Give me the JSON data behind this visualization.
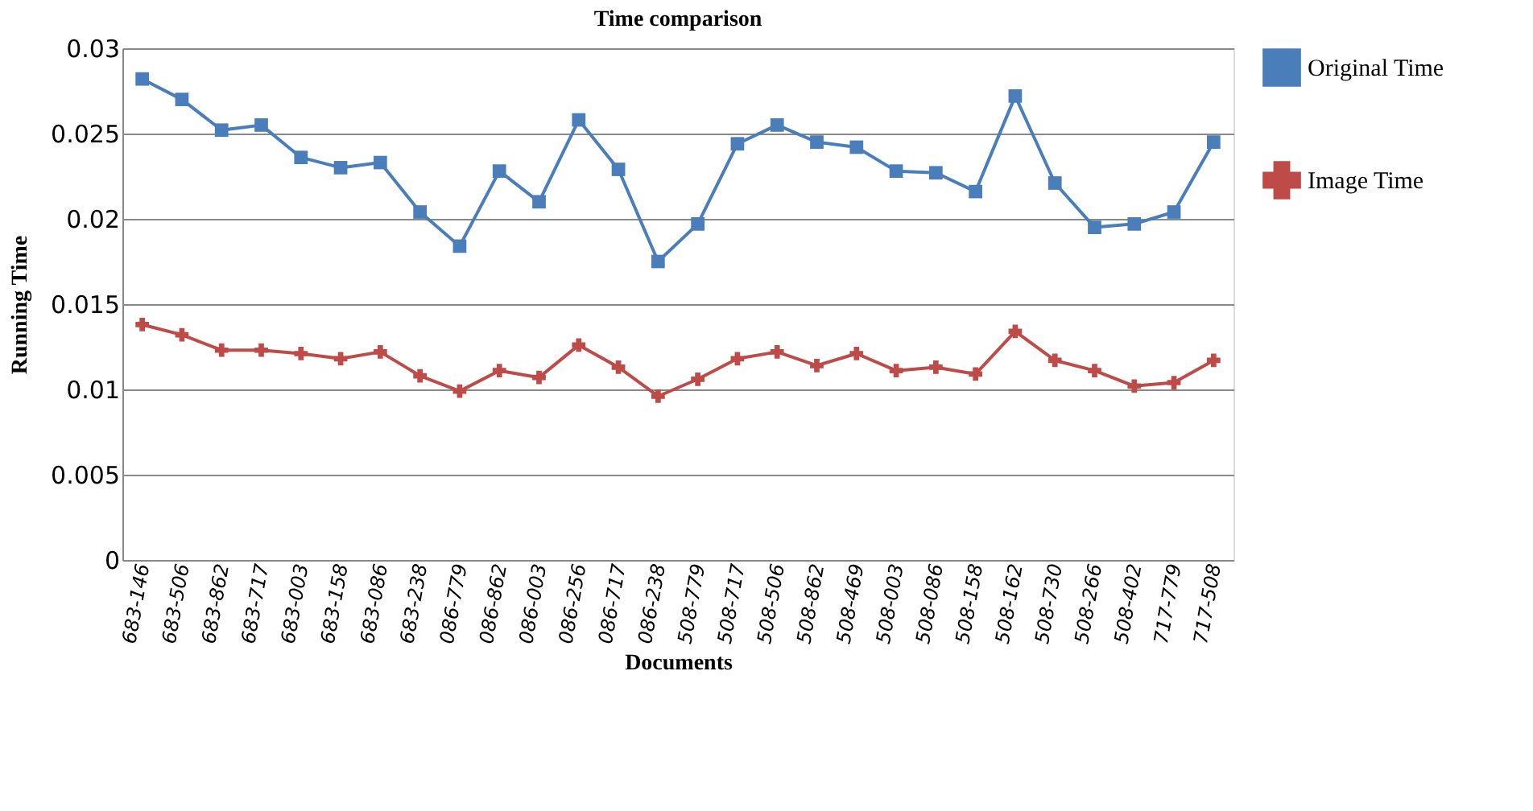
{
  "chart_data": {
    "type": "line",
    "title": "Time comparison",
    "xlabel": "Documents",
    "ylabel": "Running Time",
    "categories": [
      "683-146",
      "683-506",
      "683-862",
      "683-717",
      "683-003",
      "683-158",
      "683-086",
      "683-238",
      "086-779",
      "086-862",
      "086-003",
      "086-256",
      "086-717",
      "086-238",
      "508-779",
      "508-717",
      "508-506",
      "508-862",
      "508-469",
      "508-003",
      "508-086",
      "508-158",
      "508-162",
      "508-730",
      "508-266",
      "508-402",
      "717-779",
      "717-508"
    ],
    "series": [
      {
        "name": "Original Time",
        "color": "#4a7ebb",
        "marker": "square",
        "values": [
          0.0282,
          0.027,
          0.0252,
          0.0255,
          0.0236,
          0.023,
          0.0233,
          0.0204,
          0.0184,
          0.0228,
          0.021,
          0.0258,
          0.0229,
          0.0175,
          0.0197,
          0.0244,
          0.0255,
          0.0245,
          0.0242,
          0.0228,
          0.0227,
          0.0216,
          0.0272,
          0.0221,
          0.0195,
          0.0197,
          0.0204,
          0.0245
        ]
      },
      {
        "name": "Image Time",
        "color": "#be4b48",
        "marker": "cross",
        "values": [
          0.0138,
          0.0132,
          0.0123,
          0.0123,
          0.0121,
          0.0118,
          0.0122,
          0.0108,
          0.0099,
          0.0111,
          0.0107,
          0.0126,
          0.0113,
          0.0096,
          0.0106,
          0.0118,
          0.0122,
          0.0114,
          0.0121,
          0.0111,
          0.0113,
          0.0109,
          0.0134,
          0.0117,
          0.0111,
          0.0102,
          0.0104,
          0.0117
        ]
      }
    ],
    "ylim": [
      0,
      0.03
    ],
    "yticks": [
      0,
      0.005,
      0.01,
      0.015,
      0.02,
      0.025,
      0.03
    ],
    "grid": "y",
    "legend": "right",
    "line_style": "solid"
  }
}
